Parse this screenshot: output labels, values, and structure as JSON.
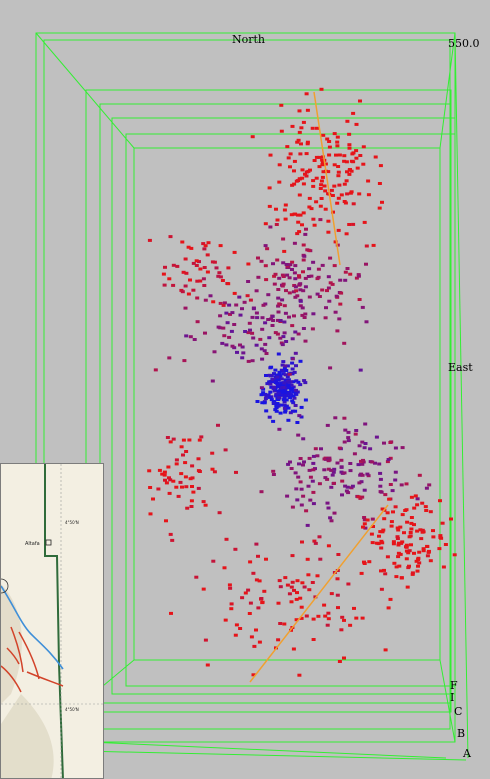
{
  "view": {
    "background": "#c0c0c0",
    "frame_color": "#33ee33",
    "labels": {
      "north": "North",
      "east": "East",
      "top_value": "550.0",
      "side_letters": [
        "F",
        "I",
        "C",
        "B",
        "A"
      ]
    },
    "trend_line_color": "#f0a030",
    "point_colors": {
      "shallow": "#ee1111",
      "deep": "#1111ee"
    }
  },
  "inset_map": {
    "label_place": "Altafa",
    "label_coord_top": "4°50'N",
    "label_coord_bottom": "4°50'N",
    "land_color": "#f3efe2",
    "border_color": "#2f6b3a",
    "river_color": "#3f8fd8",
    "fault_color": "#d2432a"
  }
}
